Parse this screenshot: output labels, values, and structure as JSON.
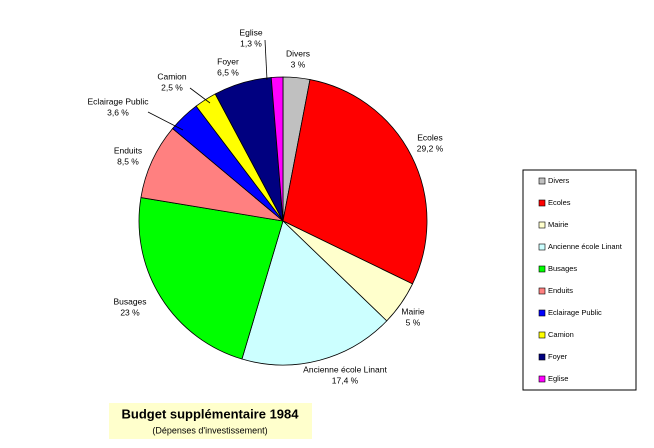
{
  "chart_data": {
    "type": "pie",
    "title": "Budget supplémentaire 1984",
    "subtitle": "(Dépenses d'investissement)",
    "categories": [
      "Divers",
      "Ecoles",
      "Mairie",
      "Ancienne école Linant",
      "Busages",
      "Enduits",
      "Eclairage Public",
      "Camion",
      "Foyer",
      "Eglise"
    ],
    "values": [
      3,
      29.2,
      5,
      17.4,
      23,
      8.5,
      3.6,
      2.5,
      6.5,
      1.3
    ],
    "value_labels": [
      "3 %",
      "29,2 %",
      "5 %",
      "17,4 %",
      "23 %",
      "8,5 %",
      "3,6 %",
      "2,5 %",
      "6,5 %",
      "1,3 %"
    ],
    "colors": [
      "#c0c0c0",
      "#ff0000",
      "#ffffcc",
      "#ccffff",
      "#00ff00",
      "#ff8080",
      "#0000ff",
      "#ffff00",
      "#000080",
      "#ff00ff"
    ],
    "legend": "right"
  }
}
